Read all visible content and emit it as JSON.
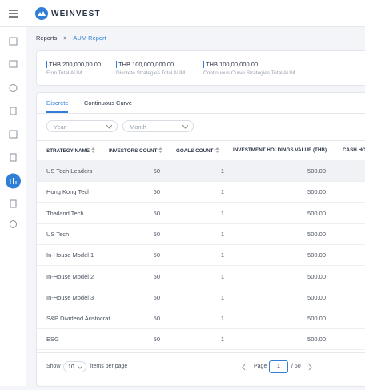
{
  "header": {
    "brand": "WEINVEST"
  },
  "breadcrumb": [
    "Reports",
    "AUM Report"
  ],
  "summary": [
    {
      "value": "THB 200,000,00.00",
      "label": "Firm Total AUM"
    },
    {
      "value": "THB 100,000,000.00",
      "label": "Discrete Strategies Total AUM"
    },
    {
      "value": "THB 100,00,000.00",
      "label": "Continuous Curve Strategies Total AUM"
    }
  ],
  "tabs": [
    "Discrete",
    "Continuous Curve"
  ],
  "filters": [
    "Year",
    "Month"
  ],
  "table": {
    "columns": [
      "STRATEGY NAME",
      "INVESTORS COUNT",
      "GOALS COUNT",
      "INVESTMENT HOLDINGS VALUE (THB)",
      "CASH HO"
    ],
    "rows": [
      [
        "US Tech Leaders",
        "50",
        "1",
        "500.00"
      ],
      [
        "Hong Kong Tech",
        "50",
        "1",
        "500.00"
      ],
      [
        "Thailand Tech",
        "50",
        "1",
        "500.00"
      ],
      [
        "US Tech",
        "50",
        "1",
        "500.00"
      ],
      [
        "In-House Model 1",
        "50",
        "1",
        "500.00"
      ],
      [
        "In-House Model 2",
        "50",
        "1",
        "500.00"
      ],
      [
        "In-House Model 3",
        "50",
        "1",
        "500.00"
      ],
      [
        "S&P Dividend Aristocrat",
        "50",
        "1",
        "500.00"
      ],
      [
        "ESG",
        "50",
        "1",
        "500.00"
      ]
    ]
  },
  "footer": {
    "show": "Show",
    "page_size": "10",
    "per_page": "items per page",
    "page_label": "Page",
    "page": "1",
    "total": "/ 50"
  }
}
